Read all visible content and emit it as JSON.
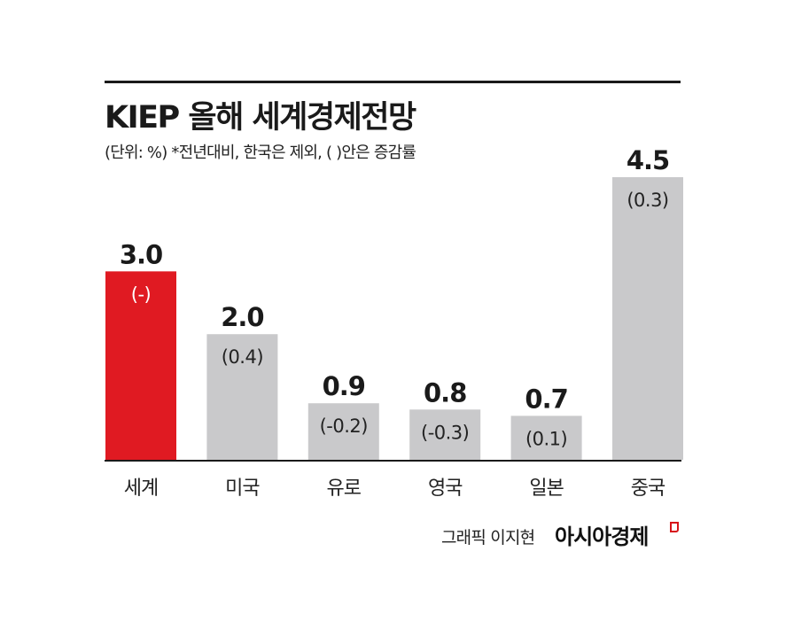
{
  "title": "KIEP 올해 세계경제전망",
  "subtitle": "(단위: %)  *전년대비, 한국은 제외, (   )안은 증감률",
  "credit": {
    "text": "그래픽 이지현",
    "logo": "아시아경제"
  },
  "colors": {
    "highlight": "#e01a22",
    "bar": "#c9c9cb",
    "axis": "#1a1a1a",
    "text": "#1a1a1a"
  },
  "chart_data": {
    "type": "bar",
    "categories": [
      "세계",
      "미국",
      "유로",
      "영국",
      "일본",
      "중국"
    ],
    "values": [
      3.0,
      2.0,
      0.9,
      0.8,
      0.7,
      4.5
    ],
    "value_labels": [
      "3.0",
      "2.0",
      "0.9",
      "0.8",
      "0.7",
      "4.5"
    ],
    "change_labels": [
      "(-)",
      "(0.4)",
      "(-0.2)",
      "(-0.3)",
      "(0.1)",
      "(0.3)"
    ],
    "highlight_index": 0,
    "ylim": [
      0,
      4.5
    ],
    "grid": false,
    "legend": "none"
  }
}
